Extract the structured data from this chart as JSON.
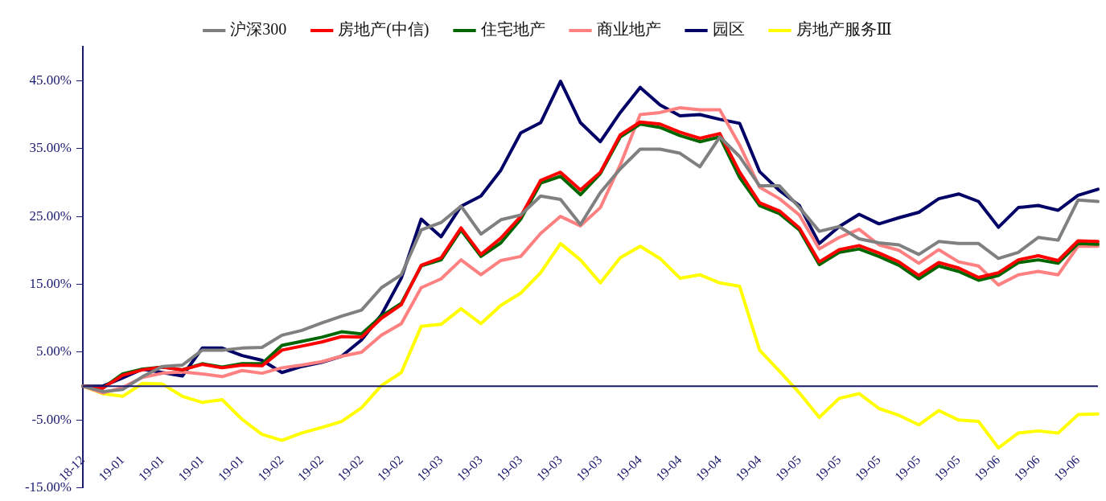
{
  "chart_data": {
    "type": "line",
    "legend": "top",
    "grid": false,
    "marker": "none",
    "line_style": "solid",
    "categories": [
      "18-12",
      null,
      "19-01",
      null,
      "19-01",
      null,
      "19-01",
      null,
      "19-01",
      null,
      "19-02",
      null,
      "19-02",
      null,
      "19-02",
      null,
      "19-02",
      null,
      "19-03",
      null,
      "19-03",
      null,
      "19-03",
      null,
      "19-03",
      null,
      "19-03",
      null,
      "19-04",
      null,
      "19-04",
      null,
      "19-04",
      null,
      "19-04",
      null,
      "19-05",
      null,
      "19-05",
      null,
      "19-05",
      null,
      "19-05",
      null,
      "19-05",
      null,
      "19-06",
      null,
      "19-06",
      null,
      "19-06",
      null
    ],
    "ylim": [
      -15,
      50
    ],
    "ref_lines": [
      {
        "axis": "y",
        "value": 0,
        "color": "#1a1a6e"
      }
    ],
    "yticks": [
      {
        "value": -15,
        "label": "-15.00%"
      },
      {
        "value": -5,
        "label": "-5.00%"
      },
      {
        "value": 5,
        "label": "5.00%"
      },
      {
        "value": 15,
        "label": "15.00%"
      },
      {
        "value": 25,
        "label": "25.00%"
      },
      {
        "value": 35,
        "label": "35.00%"
      },
      {
        "value": 45,
        "label": "45.00%"
      }
    ],
    "series": [
      {
        "name": "沪深300",
        "color": "#808080",
        "values": [
          0,
          -0.8,
          -0.5,
          1.4,
          2.9,
          3.1,
          5.3,
          5.3,
          5.6,
          5.7,
          7.5,
          8.2,
          9.3,
          10.3,
          11.2,
          14.5,
          16.4,
          23.0,
          24.1,
          26.5,
          22.4,
          24.5,
          25.2,
          28.0,
          27.5,
          23.8,
          28.5,
          32.0,
          34.9,
          34.9,
          34.3,
          32.3,
          36.7,
          33.8,
          29.5,
          29.5,
          26.3,
          22.8,
          23.5,
          21.7,
          21.1,
          20.8,
          19.4,
          21.3,
          21.0,
          21.0,
          18.8,
          19.7,
          21.9,
          21.5,
          27.4,
          27.2
        ]
      },
      {
        "name": "房地产(中信)",
        "color": "#ff0000",
        "values": [
          0,
          -0.3,
          1.6,
          2.4,
          2.8,
          2.4,
          3.2,
          2.7,
          3.1,
          3.0,
          5.3,
          5.9,
          6.5,
          7.3,
          7.2,
          10.0,
          12.0,
          17.8,
          18.9,
          23.3,
          19.4,
          21.8,
          25.0,
          30.3,
          31.5,
          28.9,
          31.5,
          37.0,
          38.9,
          38.6,
          37.4,
          36.5,
          37.2,
          31.5,
          27.0,
          25.8,
          23.3,
          18.3,
          20.1,
          20.7,
          19.6,
          18.3,
          16.3,
          18.2,
          17.4,
          16.0,
          16.7,
          18.6,
          19.2,
          18.5,
          21.4,
          21.3
        ]
      },
      {
        "name": "住宅地产",
        "color": "#006600",
        "values": [
          0,
          -0.3,
          1.8,
          2.5,
          2.8,
          2.4,
          3.3,
          2.8,
          3.3,
          3.3,
          6.0,
          6.6,
          7.2,
          8.0,
          7.7,
          10.3,
          12.2,
          17.7,
          18.6,
          23.0,
          19.1,
          21.1,
          24.6,
          29.9,
          30.9,
          28.2,
          31.3,
          36.7,
          38.6,
          38.1,
          36.9,
          36.0,
          36.7,
          30.7,
          26.6,
          25.4,
          23.0,
          17.9,
          19.7,
          20.2,
          19.1,
          17.8,
          15.8,
          17.7,
          16.9,
          15.6,
          16.3,
          18.2,
          18.6,
          18.1,
          21.0,
          20.9
        ]
      },
      {
        "name": "商业地产",
        "color": "#ff8080",
        "values": [
          0,
          -1.0,
          -0.2,
          1.3,
          1.9,
          2.1,
          1.8,
          1.4,
          2.3,
          1.9,
          2.7,
          3.1,
          3.6,
          4.4,
          5.0,
          7.5,
          9.2,
          14.5,
          15.8,
          18.6,
          16.4,
          18.5,
          19.1,
          22.5,
          25.0,
          23.6,
          26.3,
          32.6,
          40.0,
          40.3,
          41.0,
          40.7,
          40.7,
          35.5,
          29.3,
          27.6,
          25.2,
          20.2,
          21.9,
          23.1,
          20.8,
          20.0,
          18.1,
          20.1,
          18.3,
          17.7,
          14.9,
          16.4,
          16.9,
          16.4,
          20.6,
          20.6
        ]
      },
      {
        "name": "园区",
        "color": "#000066",
        "values": [
          0,
          0,
          1.2,
          2.5,
          2.0,
          1.5,
          5.6,
          5.6,
          4.5,
          3.8,
          2.0,
          2.9,
          3.5,
          4.4,
          6.8,
          10.5,
          15.9,
          24.6,
          22.0,
          26.5,
          28.0,
          31.8,
          37.3,
          38.8,
          44.9,
          38.8,
          36.0,
          40.3,
          44.0,
          41.4,
          39.8,
          40.0,
          39.3,
          38.7,
          31.6,
          28.8,
          26.6,
          21.0,
          23.5,
          25.3,
          23.9,
          24.8,
          25.6,
          27.6,
          28.3,
          27.2,
          23.4,
          26.3,
          26.6,
          25.9,
          28.1,
          29.0
        ]
      },
      {
        "name": "房地产服务Ⅲ",
        "color": "#ffff00",
        "values": [
          0,
          -1.1,
          -1.5,
          0.4,
          0.3,
          -1.5,
          -2.4,
          -2.0,
          -4.9,
          -7.1,
          -8.0,
          -6.9,
          -6.1,
          -5.2,
          -3.2,
          0.1,
          2.0,
          8.8,
          9.1,
          11.4,
          9.2,
          11.9,
          13.7,
          16.7,
          21.0,
          18.6,
          15.2,
          18.9,
          20.6,
          18.8,
          15.9,
          16.4,
          15.2,
          14.7,
          5.3,
          2.2,
          -1.0,
          -4.6,
          -1.8,
          -1.1,
          -3.3,
          -4.3,
          -5.7,
          -3.6,
          -5.0,
          -5.2,
          -9.1,
          -6.9,
          -6.6,
          -6.9,
          -4.2,
          -4.1
        ]
      }
    ]
  }
}
